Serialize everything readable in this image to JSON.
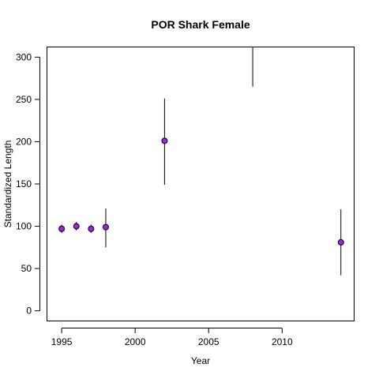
{
  "chart_data": {
    "type": "scatter",
    "title": "POR Shark Female",
    "xlabel": "Year",
    "ylabel": "Standardized Length",
    "xlim": [
      1994,
      2014.9
    ],
    "ylim": [
      -12,
      312
    ],
    "xticks": [
      1995,
      2000,
      2005,
      2010
    ],
    "yticks": [
      0,
      50,
      100,
      150,
      200,
      250,
      300
    ],
    "grid": false,
    "legend": "none",
    "marker_color": "#a020f0",
    "points": [
      {
        "x": 1995,
        "y": 97,
        "lower": 92,
        "upper": 102
      },
      {
        "x": 1996,
        "y": 100,
        "lower": 95,
        "upper": 105
      },
      {
        "x": 1997,
        "y": 97,
        "lower": 92,
        "upper": 102
      },
      {
        "x": 1998,
        "y": 99,
        "lower": 75,
        "upper": 121
      },
      {
        "x": 2002,
        "y": 201,
        "lower": 149,
        "upper": 251
      },
      {
        "x": 2008,
        "y": null,
        "lower": 265,
        "upper": 312
      },
      {
        "x": 2014,
        "y": 81,
        "lower": 42,
        "upper": 120
      }
    ]
  }
}
